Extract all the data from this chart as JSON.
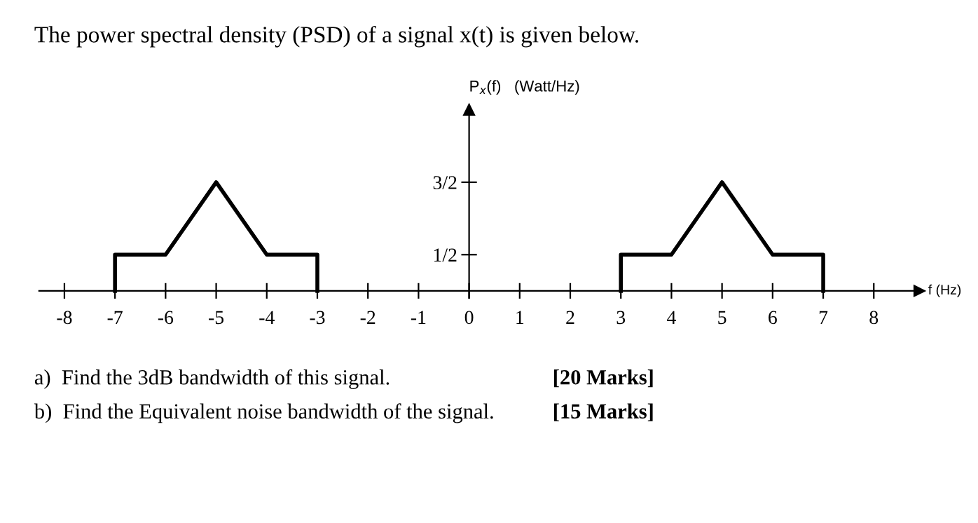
{
  "chart_data": {
    "type": "line",
    "title": "The power spectral density (PSD) of a signal x(t) is given below.",
    "xlabel": "f (Hz)",
    "ylabel": "P$_{x}$(f)   (Watt/Hz)",
    "series": [
      {
        "color": "#000000",
        "x": [
          -7,
          -7,
          -6,
          -5,
          -4,
          -3,
          -3
        ],
        "values": [
          0,
          0.5,
          0.5,
          1.5,
          0.5,
          0.5,
          0
        ]
      },
      {
        "color": "#000000",
        "x": [
          3,
          3,
          4,
          5,
          6,
          7,
          7
        ],
        "values": [
          0,
          0.5,
          0.5,
          1.5,
          0.5,
          0.5,
          0
        ]
      }
    ],
    "xlim": [
      -8.5,
      8.9
    ],
    "ylim": [
      -0.1,
      2.5
    ],
    "xticks": [
      -8,
      -7,
      -6,
      -5,
      -4,
      -3,
      -2,
      -1,
      0,
      1,
      2,
      3,
      4,
      5,
      6,
      7,
      8
    ],
    "yticks": [
      {
        "value": 0.5,
        "label": "1/2"
      },
      {
        "value": 1.5,
        "label": "3/2"
      }
    ],
    "grid": false,
    "marker": "none",
    "line_style": "solid",
    "annotations": [
      "a)  Find the 3dB bandwidth of this signal.",
      "[20 Marks]",
      "b)  Find the Equivalent noise bandwidth of the signal.",
      "[15 Marks]"
    ]
  }
}
